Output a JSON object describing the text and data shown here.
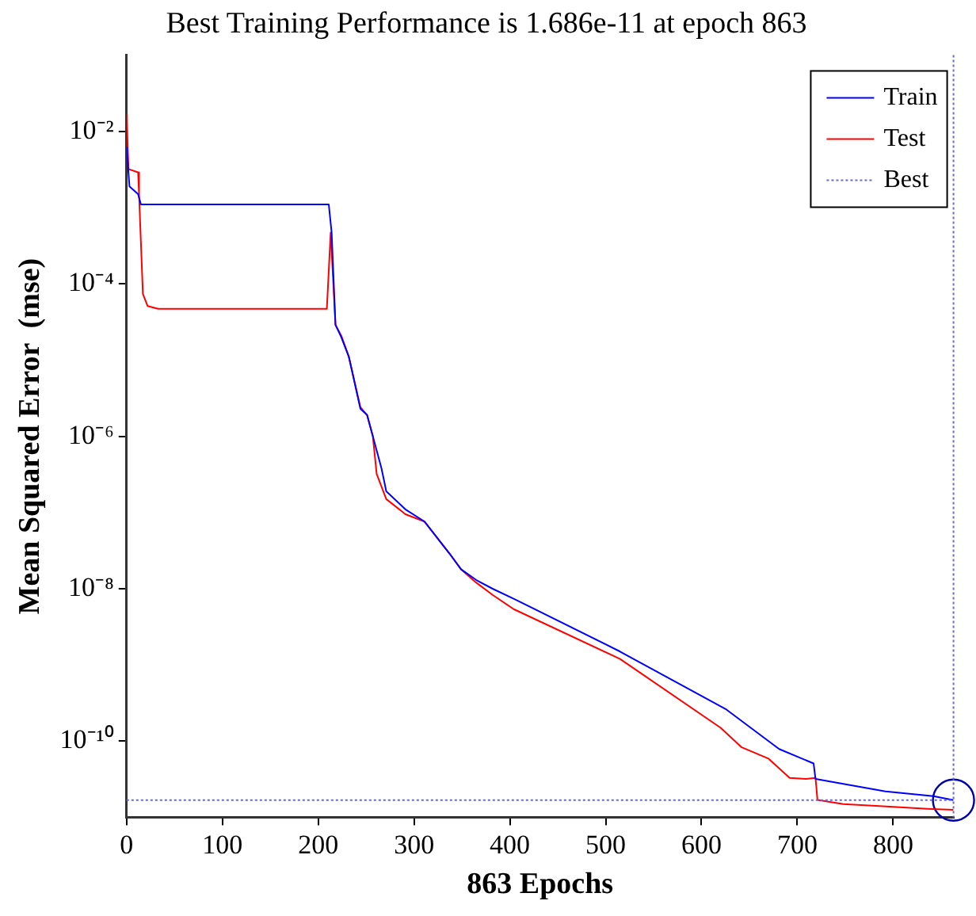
{
  "chart_data": {
    "type": "line",
    "title": "Best Training Performance is 1.686e-11 at epoch 863",
    "xlabel": "863 Epochs",
    "ylabel": "Mean Squared Error  (mse)",
    "log": "y",
    "xlim": [
      0,
      863
    ],
    "xticks": [
      0,
      100,
      200,
      300,
      400,
      500,
      600,
      700,
      800
    ],
    "ylim": [
      1e-11,
      0.1
    ],
    "yticks": [
      {
        "value": 1e-10,
        "label": "10⁻¹⁰"
      },
      {
        "value": 1e-08,
        "label": "10⁻⁸"
      },
      {
        "value": 1e-06,
        "label": "10⁻⁶"
      },
      {
        "value": 0.0001,
        "label": "10⁻⁴"
      },
      {
        "value": 0.01,
        "label": "10⁻²"
      }
    ],
    "grid": false,
    "legend": "top right",
    "marker": "none",
    "line_style": "solid",
    "series": [
      {
        "name": "Train",
        "color": "#0000ff",
        "x": [
          0,
          3,
          12,
          15,
          211,
          214,
          218,
          224,
          232,
          244,
          251,
          257,
          266,
          271,
          291,
          311,
          337,
          349,
          365,
          382,
          404,
          515,
          626,
          681,
          717,
          719,
          792,
          842,
          863
        ],
        "values": [
          0.0063,
          0.0019,
          0.0015,
          0.0011,
          0.0011,
          0.00047,
          2.9e-05,
          2e-05,
          1.1e-05,
          2.3e-06,
          1.9e-06,
          1e-06,
          3.8e-07,
          1.9e-07,
          1.1e-07,
          7.6e-08,
          2.9e-08,
          1.8e-08,
          1.3e-08,
          1e-08,
          7.4e-09,
          1.5e-09,
          2.6e-10,
          7.9e-11,
          5.1e-11,
          3.2e-11,
          2.2e-11,
          1.9e-11,
          1.686e-11
        ]
      },
      {
        "name": "Test",
        "color": "#ff0000",
        "x": [
          0,
          2,
          12,
          13,
          17,
          22,
          33,
          209,
          213,
          218,
          224,
          232,
          244,
          251,
          257,
          261,
          271,
          291,
          311,
          337,
          349,
          365,
          382,
          404,
          515,
          620,
          642,
          670,
          692,
          709,
          719,
          721,
          748,
          836,
          863
        ],
        "values": [
          0.017,
          0.0032,
          0.0029,
          0.0015,
          7.4e-05,
          5.1e-05,
          4.7e-05,
          4.7e-05,
          0.00047,
          2.9e-05,
          2.1e-05,
          1.1e-05,
          2.4e-06,
          1.9e-06,
          1e-06,
          3.2e-07,
          1.5e-07,
          9.5e-08,
          7.6e-08,
          2.9e-08,
          1.8e-08,
          1.2e-08,
          8.3e-09,
          5.4e-09,
          1.2e-09,
          1.5e-10,
          8.3e-11,
          5.9e-11,
          3.3e-11,
          3.2e-11,
          3.3e-11,
          1.7e-11,
          1.5e-11,
          1.3e-11,
          1.26e-11
        ]
      },
      {
        "type": "scatter",
        "marker": "circle",
        "color": "#0000aa",
        "x": [
          863
        ],
        "values": [
          1.686e-11
        ]
      }
    ],
    "ref_lines": [
      {
        "axis": "y",
        "value": 1.686e-11,
        "label": "Best",
        "color": "#6666dd",
        "line_style": "dotted"
      },
      {
        "axis": "x",
        "value": 863,
        "color": "#6666dd",
        "line_style": "dotted"
      }
    ]
  }
}
